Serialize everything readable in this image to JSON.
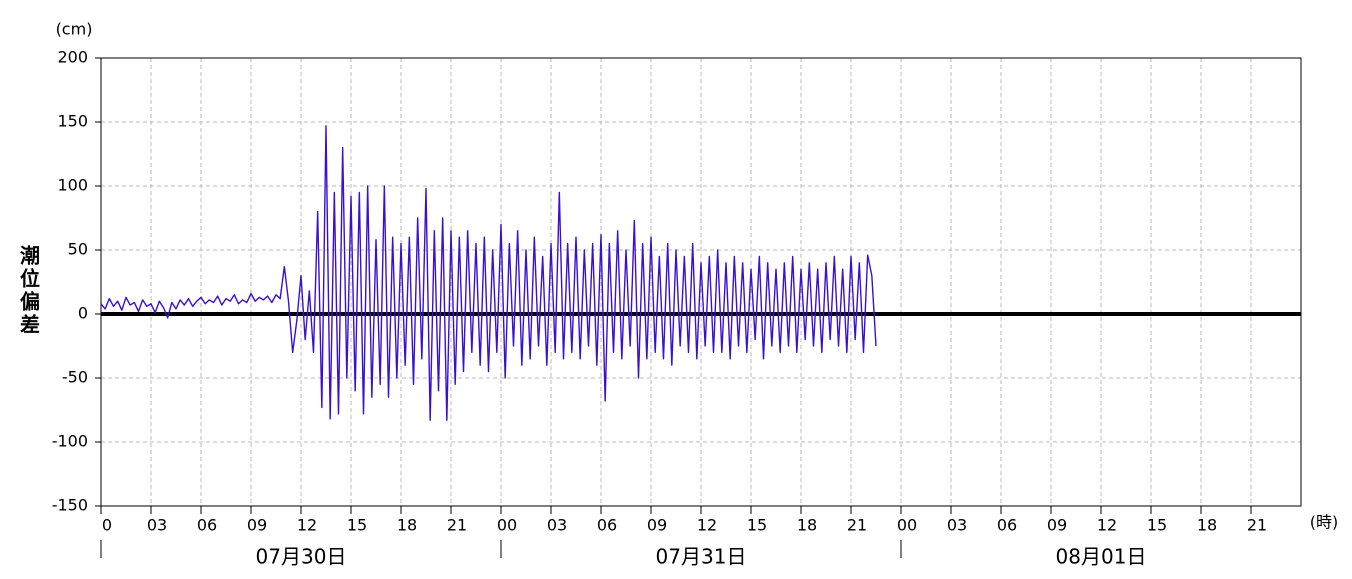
{
  "chart_data": {
    "type": "line",
    "y_label": "潮位偏差",
    "y_unit": "(cm)",
    "x_unit": "(時)",
    "day_labels": [
      "07月30日",
      "07月31日",
      "08月01日"
    ],
    "xlim": [
      0,
      72
    ],
    "ylim": [
      -150,
      200
    ],
    "xticks": [
      0,
      {
        "value": 3,
        "label": "03"
      },
      {
        "value": 6,
        "label": "06"
      },
      {
        "value": 9,
        "label": "09"
      },
      12,
      15,
      18,
      21,
      {
        "value": 24,
        "label": "00"
      },
      {
        "value": 27,
        "label": "03"
      },
      {
        "value": 30,
        "label": "06"
      },
      {
        "value": 33,
        "label": "09"
      },
      {
        "value": 36,
        "label": "12"
      },
      {
        "value": 39,
        "label": "15"
      },
      {
        "value": 42,
        "label": "18"
      },
      {
        "value": 45,
        "label": "21"
      },
      {
        "value": 48,
        "label": "00"
      },
      {
        "value": 51,
        "label": "03"
      },
      {
        "value": 54,
        "label": "06"
      },
      {
        "value": 57,
        "label": "09"
      },
      {
        "value": 60,
        "label": "12"
      },
      {
        "value": 63,
        "label": "15"
      },
      {
        "value": 66,
        "label": "18"
      },
      {
        "value": 69,
        "label": "21"
      }
    ],
    "yticks": [
      200,
      150,
      100,
      50,
      0,
      -50,
      -100,
      -150
    ],
    "grid": true,
    "zero_line": true,
    "zero_line_color": "#000000",
    "x": [
      0,
      0.25,
      0.5,
      0.75,
      1,
      1.25,
      1.5,
      1.75,
      2,
      2.25,
      2.5,
      2.75,
      3,
      3.25,
      3.5,
      3.75,
      4,
      4.25,
      4.5,
      4.75,
      5,
      5.25,
      5.5,
      5.75,
      6,
      6.25,
      6.5,
      6.75,
      7,
      7.25,
      7.5,
      7.75,
      8,
      8.25,
      8.5,
      8.75,
      9,
      9.25,
      9.5,
      9.75,
      10,
      10.25,
      10.5,
      10.75,
      11,
      11.25,
      11.5,
      11.75,
      12,
      12.25,
      12.5,
      12.75,
      13,
      13.25,
      13.5,
      13.75,
      14,
      14.25,
      14.5,
      14.75,
      15,
      15.25,
      15.5,
      15.75,
      16,
      16.25,
      16.5,
      16.75,
      17,
      17.25,
      17.5,
      17.75,
      18,
      18.25,
      18.5,
      18.75,
      19,
      19.25,
      19.5,
      19.75,
      20,
      20.25,
      20.5,
      20.75,
      21,
      21.25,
      21.5,
      21.75,
      22,
      22.25,
      22.5,
      22.75,
      23,
      23.25,
      23.5,
      23.75,
      24,
      24.25,
      24.5,
      24.75,
      25,
      25.25,
      25.5,
      25.75,
      26,
      26.25,
      26.5,
      26.75,
      27,
      27.25,
      27.5,
      27.75,
      28,
      28.25,
      28.5,
      28.75,
      29,
      29.25,
      29.5,
      29.75,
      30,
      30.25,
      30.5,
      30.75,
      31,
      31.25,
      31.5,
      31.75,
      32,
      32.25,
      32.5,
      32.75,
      33,
      33.25,
      33.5,
      33.75,
      34,
      34.25,
      34.5,
      34.75,
      35,
      35.25,
      35.5,
      35.75,
      36,
      36.25,
      36.5,
      36.75,
      37,
      37.25,
      37.5,
      37.75,
      38,
      38.25,
      38.5,
      38.75,
      39,
      39.25,
      39.5,
      39.75,
      40,
      40.25,
      40.5,
      40.75,
      41,
      41.25,
      41.5,
      41.75,
      42,
      42.25,
      42.5,
      42.75,
      43,
      43.25,
      43.5,
      43.75,
      44,
      44.25,
      44.5,
      44.75,
      45,
      45.25,
      45.5,
      45.75,
      46,
      46.25,
      46.5
    ],
    "series": [
      {
        "name": "潮位偏差",
        "color": "#3a10d0",
        "values": [
          8,
          4,
          12,
          6,
          10,
          3,
          13,
          7,
          9,
          2,
          11,
          6,
          8,
          1,
          10,
          5,
          -3,
          9,
          4,
          11,
          7,
          12,
          6,
          10,
          13,
          8,
          11,
          9,
          14,
          7,
          12,
          10,
          15,
          8,
          11,
          9,
          16,
          10,
          13,
          11,
          14,
          9,
          15,
          12,
          37,
          10,
          -30,
          -5,
          30,
          -20,
          18,
          -30,
          80,
          -73,
          147,
          -82,
          95,
          -78,
          130,
          -50,
          92,
          -60,
          95,
          -78,
          100,
          -65,
          58,
          -55,
          100,
          -65,
          60,
          -50,
          55,
          -40,
          60,
          -55,
          75,
          -35,
          98,
          -83,
          65,
          -60,
          75,
          -83,
          65,
          -55,
          60,
          -45,
          65,
          -30,
          55,
          -40,
          60,
          -45,
          50,
          -30,
          70,
          -50,
          55,
          -25,
          65,
          -40,
          50,
          -35,
          60,
          -25,
          45,
          -40,
          55,
          -30,
          95,
          -35,
          55,
          -30,
          60,
          -35,
          50,
          -25,
          55,
          -40,
          62,
          -68,
          55,
          -30,
          65,
          -35,
          50,
          -25,
          73,
          -50,
          55,
          -35,
          60,
          -30,
          45,
          -35,
          55,
          -40,
          50,
          -25,
          45,
          -30,
          55,
          -35,
          40,
          -25,
          45,
          -30,
          50,
          -30,
          40,
          -35,
          45,
          -25,
          40,
          -30,
          35,
          -20,
          45,
          -35,
          40,
          -25,
          35,
          -30,
          40,
          -25,
          45,
          -30,
          35,
          -20,
          40,
          -25,
          35,
          -30,
          40,
          -20,
          45,
          -25,
          35,
          -30,
          45,
          -20,
          40,
          -30,
          46,
          30,
          -25
        ]
      }
    ]
  }
}
